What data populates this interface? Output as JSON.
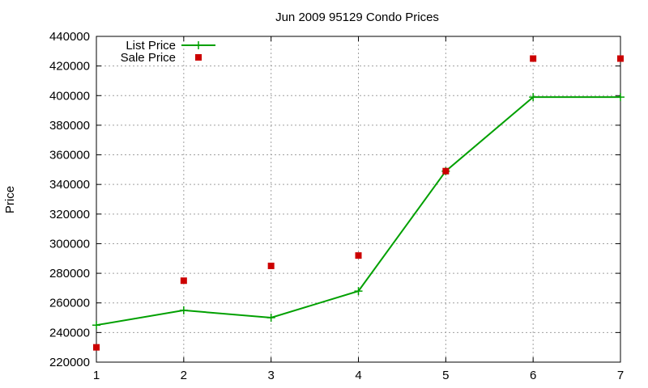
{
  "chart_data": {
    "type": "line",
    "title": "Jun 2009 95129 Condo Prices",
    "xlabel": "",
    "ylabel": "Price",
    "xlim": [
      1,
      7
    ],
    "ylim": [
      220000,
      440000
    ],
    "x_ticks": [
      "1",
      "2",
      "3",
      "4",
      "5",
      "6",
      "7"
    ],
    "y_ticks": [
      "220000",
      "240000",
      "260000",
      "280000",
      "300000",
      "320000",
      "340000",
      "360000",
      "380000",
      "400000",
      "420000",
      "440000"
    ],
    "grid": true,
    "legend_position": "top-left",
    "series": [
      {
        "name": "List Price",
        "style": "line-with-plus-markers",
        "color": "#00a000",
        "x": [
          1,
          2,
          3,
          4,
          5,
          6,
          7
        ],
        "y": [
          245000,
          255000,
          250000,
          268000,
          349000,
          399000,
          399000
        ]
      },
      {
        "name": "Sale Price",
        "style": "square-markers",
        "color": "#cc0000",
        "x": [
          1,
          2,
          3,
          4,
          5,
          6,
          7
        ],
        "y": [
          230000,
          275000,
          285000,
          292000,
          349000,
          425000,
          425000
        ]
      }
    ]
  }
}
